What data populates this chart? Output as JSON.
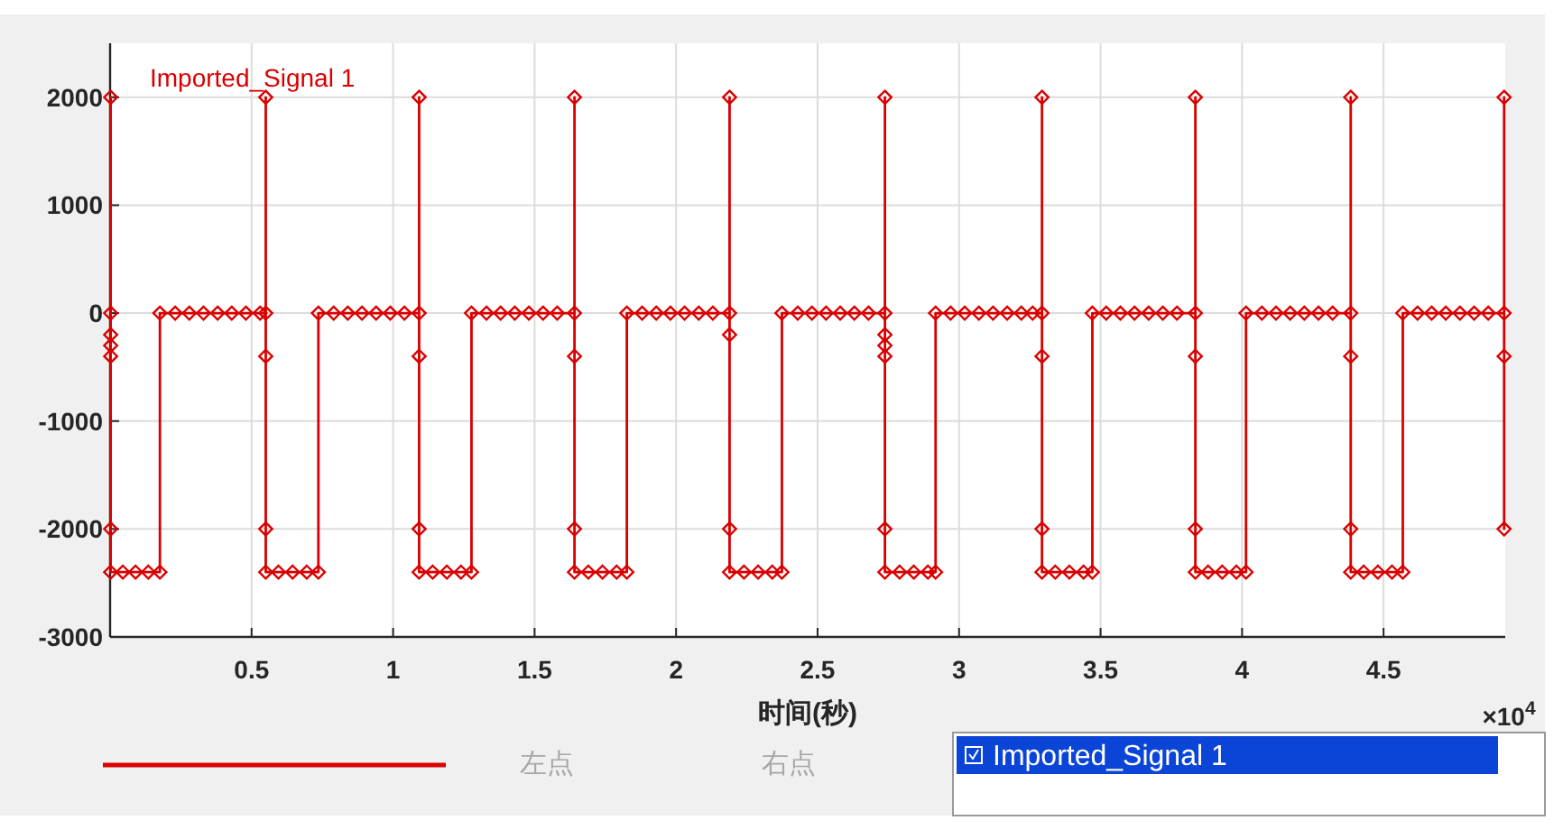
{
  "chart_data": {
    "type": "line",
    "xlabel": "时间(秒)",
    "xlim": [
      0,
      4.93
    ],
    "ylim": [
      -3000,
      2500
    ],
    "xticks": [
      0.5,
      1,
      1.5,
      2,
      2.5,
      3,
      3.5,
      4,
      4.5
    ],
    "yticks": [
      -3000,
      -2000,
      -1000,
      0,
      1000,
      2000
    ],
    "grid": true,
    "legend": "top left",
    "marker": "diamond",
    "line_style": "solid",
    "annotations": [
      "×10$^{4}$",
      "左点",
      "右点"
    ],
    "series": [
      {
        "name": "Imported_Signal 1",
        "color": "#d90000",
        "x": [
          0.002,
          0.002,
          0.002,
          0.002,
          0.002,
          0.002,
          0.002,
          0.045,
          0.09,
          0.135,
          0.176,
          0.176,
          0.23,
          0.28,
          0.33,
          0.38,
          0.43,
          0.48,
          0.53,
          0.55,
          0.55,
          0.55,
          0.55,
          0.55,
          0.595,
          0.645,
          0.695,
          0.736,
          0.736,
          0.79,
          0.84,
          0.89,
          0.94,
          0.99,
          1.04,
          1.092,
          1.092,
          1.092,
          1.092,
          1.092,
          1.14,
          1.19,
          1.24,
          1.277,
          1.277,
          1.33,
          1.38,
          1.43,
          1.48,
          1.53,
          1.58,
          1.641,
          1.641,
          1.641,
          1.641,
          1.641,
          1.69,
          1.74,
          1.79,
          1.826,
          1.826,
          1.88,
          1.93,
          1.98,
          2.03,
          2.08,
          2.13,
          2.189,
          2.189,
          2.189,
          2.189,
          2.189,
          2.24,
          2.29,
          2.34,
          2.374,
          2.374,
          2.43,
          2.48,
          2.53,
          2.58,
          2.63,
          2.68,
          2.738,
          2.738,
          2.738,
          2.738,
          2.738,
          2.738,
          2.738,
          2.79,
          2.84,
          2.89,
          2.917,
          2.917,
          2.97,
          3.02,
          3.07,
          3.12,
          3.17,
          3.22,
          3.26,
          3.293,
          3.293,
          3.293,
          3.293,
          3.293,
          3.34,
          3.39,
          3.44,
          3.471,
          3.471,
          3.52,
          3.57,
          3.62,
          3.67,
          3.72,
          3.77,
          3.835,
          3.835,
          3.835,
          3.835,
          3.835,
          3.88,
          3.93,
          3.98,
          4.014,
          4.014,
          4.07,
          4.12,
          4.17,
          4.22,
          4.27,
          4.32,
          4.384,
          4.384,
          4.384,
          4.384,
          4.384,
          4.43,
          4.48,
          4.53,
          4.568,
          4.568,
          4.62,
          4.67,
          4.72,
          4.77,
          4.82,
          4.87,
          4.926,
          4.926,
          4.926,
          4.926
        ],
        "values": [
          2000,
          0,
          -200,
          -300,
          -400,
          -2000,
          -2400,
          -2400,
          -2400,
          -2400,
          -2400,
          0,
          0,
          0,
          0,
          0,
          0,
          0,
          0,
          0,
          2000,
          -400,
          -2000,
          -2400,
          -2400,
          -2400,
          -2400,
          -2400,
          0,
          0,
          0,
          0,
          0,
          0,
          0,
          0,
          2000,
          -400,
          -2000,
          -2400,
          -2400,
          -2400,
          -2400,
          -2400,
          0,
          0,
          0,
          0,
          0,
          0,
          0,
          0,
          2000,
          -400,
          -2000,
          -2400,
          -2400,
          -2400,
          -2400,
          -2400,
          0,
          0,
          0,
          0,
          0,
          0,
          0,
          0,
          2000,
          -200,
          -2000,
          -2400,
          -2400,
          -2400,
          -2400,
          -2400,
          0,
          0,
          0,
          0,
          0,
          0,
          0,
          0,
          2000,
          -200,
          -300,
          -400,
          -2000,
          -2400,
          -2400,
          -2400,
          -2400,
          -2400,
          0,
          0,
          0,
          0,
          0,
          0,
          0,
          0,
          0,
          2000,
          -400,
          -2000,
          -2400,
          -2400,
          -2400,
          -2400,
          -2400,
          0,
          0,
          0,
          0,
          0,
          0,
          0,
          0,
          2000,
          -400,
          -2000,
          -2400,
          -2400,
          -2400,
          -2400,
          -2400,
          0,
          0,
          0,
          0,
          0,
          0,
          0,
          0,
          2000,
          -400,
          -2000,
          -2400,
          -2400,
          -2400,
          -2400,
          -2400,
          0,
          0,
          0,
          0,
          0,
          0,
          0,
          0,
          2000,
          -400,
          -2000
        ]
      }
    ]
  }
}
